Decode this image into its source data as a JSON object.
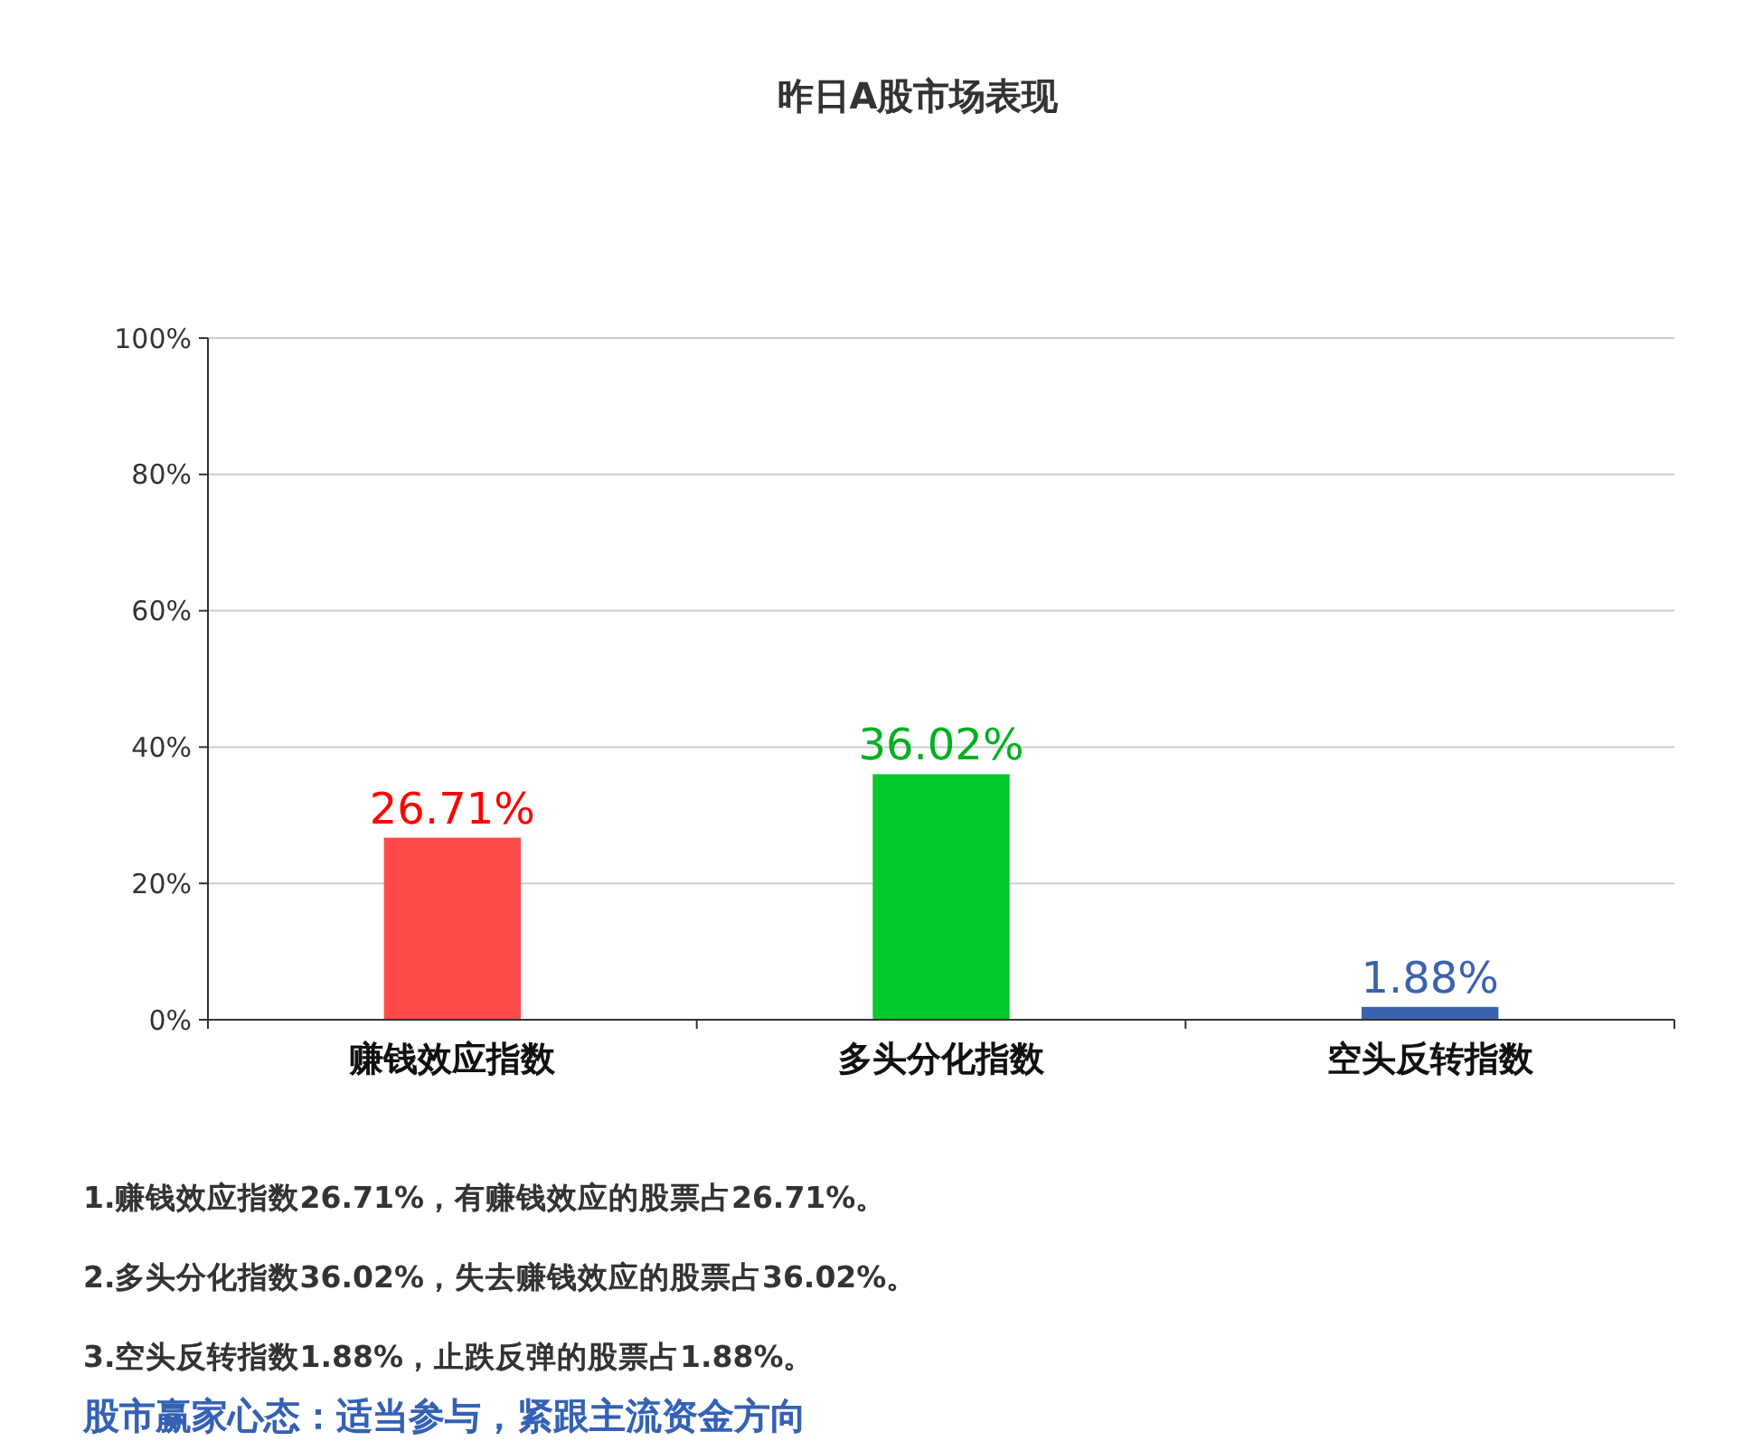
{
  "chart_data": {
    "type": "bar",
    "title": "昨日A股市场表现",
    "categories": [
      "赚钱效应指数",
      "多头分化指数",
      "空头反转指数"
    ],
    "values": [
      26.71,
      36.02,
      1.88
    ],
    "colors": [
      "#ff4a4a",
      "#00c92c",
      "#3a62ad"
    ],
    "ylim": [
      0,
      100
    ],
    "yticks": [
      {
        "value": 0,
        "label": "0%"
      },
      {
        "value": 20,
        "label": "20%"
      },
      {
        "value": 40,
        "label": "40%"
      },
      {
        "value": 60,
        "label": "60%"
      },
      {
        "value": 80,
        "label": "80%"
      },
      {
        "value": 100,
        "label": "100%"
      }
    ],
    "grid": "y",
    "value_labels": [
      "26.71%",
      "36.02%",
      "1.88%"
    ],
    "annotations": [
      "1.赚钱效应指数26.71%，有赚钱效应的股票占26.71%。",
      "2.多头分化指数36.02%，失去赚钱效应的股票占36.02%。",
      "3.空头反转指数1.88%，止跌反弹的股票占1.88%。",
      "股市赢家心态：适当参与，紧跟主流资金方向"
    ]
  }
}
